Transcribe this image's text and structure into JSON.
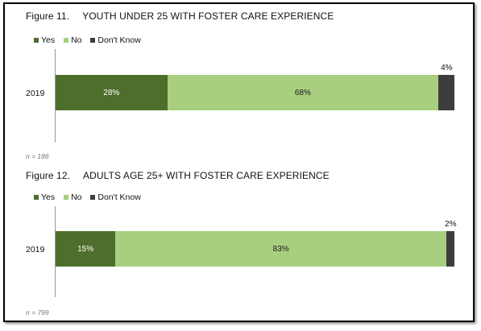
{
  "figures": [
    {
      "number": "Figure 11.",
      "title": "YOUTH UNDER 25 WITH FOSTER CARE EXPERIENCE",
      "note": "n = 186"
    },
    {
      "number": "Figure 12.",
      "title": "ADULTS AGE 25+ WITH FOSTER CARE EXPERIENCE",
      "note": "n = 799"
    }
  ],
  "chart_data": [
    {
      "type": "bar",
      "orientation": "horizontal",
      "stacked": true,
      "title": "YOUTH UNDER 25 WITH FOSTER CARE EXPERIENCE",
      "categories": [
        "2019"
      ],
      "series": [
        {
          "name": "Yes",
          "values": [
            28
          ],
          "label": "28%",
          "color": "#4e6e2c"
        },
        {
          "name": "No",
          "values": [
            68
          ],
          "label": "68%",
          "color": "#a8cf7f"
        },
        {
          "name": "Don't Know",
          "values": [
            4
          ],
          "label": "4%",
          "color": "#3d3d3d"
        }
      ],
      "xlim": [
        0,
        100
      ],
      "legend": "top-left",
      "grid": false
    },
    {
      "type": "bar",
      "orientation": "horizontal",
      "stacked": true,
      "title": "ADULTS AGE 25+ WITH FOSTER CARE EXPERIENCE",
      "categories": [
        "2019"
      ],
      "series": [
        {
          "name": "Yes",
          "values": [
            15
          ],
          "label": "15%",
          "color": "#4e6e2c"
        },
        {
          "name": "No",
          "values": [
            83
          ],
          "label": "83%",
          "color": "#a8cf7f"
        },
        {
          "name": "Don't Know",
          "values": [
            2
          ],
          "label": "2%",
          "color": "#3d3d3d"
        }
      ],
      "xlim": [
        0,
        100
      ],
      "legend": "top-left",
      "grid": false
    }
  ]
}
